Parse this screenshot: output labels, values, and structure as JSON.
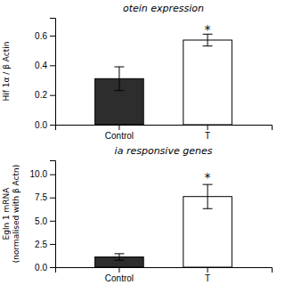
{
  "chart_data": [
    {
      "type": "bar",
      "title": "otein expression",
      "categories": [
        "Control",
        "T"
      ],
      "values": [
        0.31,
        0.57
      ],
      "errors": [
        0.08,
        0.04
      ],
      "colors": [
        "#2d2d2d",
        "#ffffff"
      ],
      "ylabel": "Hif 1α / β Actin",
      "ylim": [
        0.0,
        0.72
      ],
      "yticks": [
        {
          "value": 0.0,
          "label": "0.0"
        },
        0.2,
        0.4,
        0.6
      ],
      "annotations": [
        {
          "text": "*",
          "x": "T",
          "y": 0.615
        }
      ]
    },
    {
      "type": "bar",
      "title": "ia responsive genes",
      "categories": [
        "Control",
        "T"
      ],
      "values": [
        1.1,
        7.6
      ],
      "errors": [
        0.35,
        1.3
      ],
      "colors": [
        "#2d2d2d",
        "#ffffff"
      ],
      "ylabel": "Egln 1 mRNA\n(normalised with β Actn)",
      "ylim": [
        0.0,
        11.5
      ],
      "yticks": [
        {
          "value": 0.0,
          "label": "0.0"
        },
        2.5,
        {
          "value": 5.0,
          "label": "5.0"
        },
        7.5,
        {
          "value": 10.0,
          "label": "10.0"
        }
      ],
      "annotations": [
        {
          "text": "*",
          "x": "T",
          "y": 9.2
        }
      ]
    }
  ]
}
